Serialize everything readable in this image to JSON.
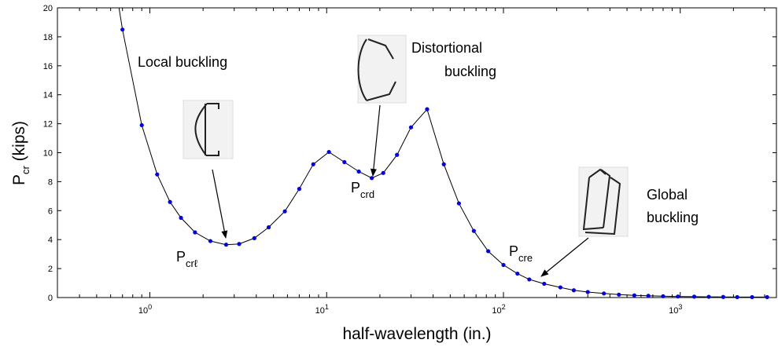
{
  "chart_data": {
    "type": "line",
    "xlabel": "half-wavelength (in.)",
    "ylabel": {
      "main": "P",
      "sub": "cr",
      "rest": " (kips)"
    },
    "xscale": "log",
    "xlim": [
      0.3,
      3500
    ],
    "ylim": [
      0,
      20
    ],
    "yticks": [
      0,
      2,
      4,
      6,
      8,
      10,
      12,
      14,
      16,
      18,
      20
    ],
    "xticks": [
      {
        "value": 1,
        "base": "10",
        "exp": "0"
      },
      {
        "value": 10,
        "base": "10",
        "exp": "1"
      },
      {
        "value": 100,
        "base": "10",
        "exp": "2"
      },
      {
        "value": 1000,
        "base": "10",
        "exp": "3"
      }
    ],
    "grid": false,
    "series": [
      {
        "color": "#0000ee",
        "line_color": "#000000",
        "x": [
          0.7,
          0.9,
          1.1,
          1.3,
          1.5,
          1.8,
          2.2,
          2.7,
          3.2,
          3.9,
          4.7,
          5.8,
          7.0,
          8.4,
          10.3,
          12.6,
          15.2,
          18.0,
          20.9,
          25.0,
          30.0,
          37.0,
          46.0,
          56.0,
          68.0,
          82.0,
          100.0,
          120.0,
          140.0,
          170.0,
          210.0,
          250.0,
          300.0,
          370.0,
          450.0,
          550.0,
          660.0,
          800.0,
          970.0,
          1200.0,
          1450.0,
          1750.0,
          2100.0,
          2550.0,
          3100.0
        ],
        "y": [
          18.5,
          11.9,
          8.5,
          6.6,
          5.5,
          4.5,
          3.9,
          3.65,
          3.7,
          4.1,
          4.85,
          5.95,
          7.5,
          9.2,
          10.05,
          9.35,
          8.7,
          8.25,
          8.6,
          9.85,
          11.75,
          13.0,
          9.2,
          6.5,
          4.6,
          3.2,
          2.25,
          1.65,
          1.25,
          0.95,
          0.7,
          0.5,
          0.38,
          0.28,
          0.2,
          0.15,
          0.12,
          0.09,
          0.07,
          0.06,
          0.05,
          0.04,
          0.03,
          0.03,
          0.03
        ],
        "curve_start": [
          0.63,
          22
        ]
      }
    ],
    "annotations": {
      "local": "Local buckling",
      "distortional_1": "Distortional",
      "distortional_2": "buckling",
      "global_1": "Global",
      "global_2": "buckling",
      "pcrl_main": "P",
      "pcrl_sub": "crℓ",
      "pcrd_main": "P",
      "pcrd_sub": "crd",
      "pcre_main": "P",
      "pcre_sub": "cre"
    }
  }
}
